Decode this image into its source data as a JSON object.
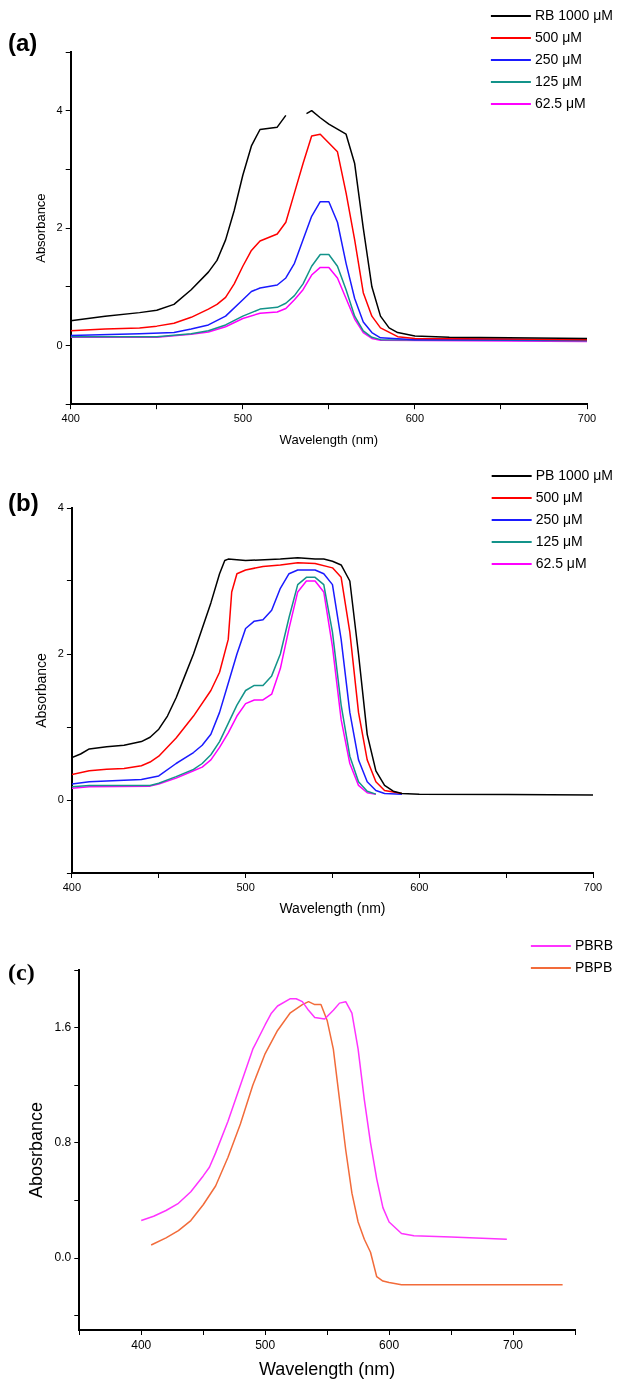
{
  "chart_data": [
    {
      "type": "line",
      "title": "(a)",
      "xlabel": "Wavelength (nm)",
      "ylabel": "Absorbance",
      "xlim": [
        400,
        700
      ],
      "xticks": [
        400,
        {
          "value": 450,
          "label": null
        },
        500,
        {
          "value": 550,
          "label": null
        },
        600,
        {
          "value": 650,
          "label": null
        },
        700
      ],
      "ylim": [
        -1,
        5
      ],
      "yticks": [
        {
          "value": -1,
          "label": null
        },
        0,
        {
          "value": 1,
          "label": null
        },
        2,
        {
          "value": 3,
          "label": null
        },
        4,
        {
          "value": 5,
          "label": null
        }
      ],
      "grid": false,
      "marker": "none",
      "legend": "top right",
      "series": [
        {
          "name": "RB 1000 μM",
          "color": "#000000",
          "x": [
            400,
            420,
            440,
            450,
            460,
            470,
            480,
            485,
            490,
            495,
            500,
            505,
            510,
            520,
            525,
            530,
            537,
            540,
            545,
            550,
            560,
            565,
            570,
            575,
            580,
            585,
            590,
            600,
            620,
            700
          ],
          "values": [
            0.42,
            0.5,
            0.56,
            0.6,
            0.7,
            0.95,
            1.25,
            1.45,
            1.8,
            2.3,
            2.9,
            3.4,
            3.68,
            3.72,
            3.92,
            null,
            3.95,
            4.0,
            3.88,
            3.77,
            3.6,
            3.1,
            2.0,
            1.0,
            0.5,
            0.3,
            0.22,
            0.16,
            0.14,
            0.12
          ]
        },
        {
          "name": "500 μM",
          "color": "#ff0000",
          "x": [
            400,
            420,
            440,
            450,
            460,
            470,
            480,
            485,
            490,
            495,
            500,
            505,
            510,
            520,
            525,
            530,
            535,
            540,
            545,
            550,
            555,
            560,
            565,
            570,
            575,
            580,
            590,
            600,
            700
          ],
          "values": [
            0.25,
            0.28,
            0.3,
            0.33,
            0.38,
            0.48,
            0.62,
            0.7,
            0.82,
            1.05,
            1.35,
            1.62,
            1.78,
            1.9,
            2.1,
            2.6,
            3.1,
            3.57,
            3.6,
            3.45,
            3.3,
            2.6,
            1.8,
            0.9,
            0.5,
            0.3,
            0.15,
            0.12,
            0.1
          ]
        },
        {
          "name": "250 μM",
          "color": "#1a1aff",
          "x": [
            400,
            440,
            460,
            470,
            480,
            490,
            500,
            505,
            510,
            520,
            525,
            530,
            535,
            540,
            545,
            550,
            555,
            560,
            565,
            570,
            575,
            580,
            600,
            700
          ],
          "values": [
            0.17,
            0.2,
            0.22,
            0.28,
            0.35,
            0.5,
            0.78,
            0.92,
            0.98,
            1.03,
            1.15,
            1.4,
            1.8,
            2.2,
            2.45,
            2.45,
            2.1,
            1.4,
            0.8,
            0.4,
            0.22,
            0.13,
            0.1,
            0.1
          ]
        },
        {
          "name": "125 μM",
          "color": "#13938a",
          "x": [
            400,
            450,
            470,
            480,
            490,
            500,
            510,
            520,
            525,
            530,
            535,
            540,
            545,
            550,
            555,
            560,
            565,
            570,
            575,
            580,
            700
          ],
          "values": [
            0.15,
            0.15,
            0.2,
            0.25,
            0.35,
            0.5,
            0.62,
            0.65,
            0.72,
            0.85,
            1.05,
            1.35,
            1.55,
            1.55,
            1.35,
            0.95,
            0.5,
            0.25,
            0.14,
            0.1,
            0.08
          ]
        },
        {
          "name": "62.5 μM",
          "color": "#ff00ff",
          "x": [
            400,
            450,
            470,
            480,
            490,
            500,
            510,
            520,
            525,
            530,
            535,
            540,
            545,
            550,
            555,
            560,
            565,
            570,
            575,
            580,
            700
          ],
          "values": [
            0.14,
            0.14,
            0.19,
            0.23,
            0.32,
            0.46,
            0.55,
            0.57,
            0.63,
            0.78,
            0.95,
            1.2,
            1.33,
            1.33,
            1.15,
            0.8,
            0.45,
            0.22,
            0.12,
            0.09,
            0.07
          ]
        }
      ]
    },
    {
      "type": "line",
      "title": "(b)",
      "xlabel": "Wavelength (nm)",
      "ylabel": "Absorbance",
      "xlim": [
        400,
        700
      ],
      "xticks": [
        400,
        {
          "value": 450,
          "label": null
        },
        500,
        {
          "value": 550,
          "label": null
        },
        600,
        {
          "value": 650,
          "label": null
        },
        700
      ],
      "ylim": [
        -1,
        4
      ],
      "yticks": [
        {
          "value": -1,
          "label": null
        },
        0,
        {
          "value": 1,
          "label": null
        },
        2,
        {
          "value": 3,
          "label": null
        },
        4
      ],
      "grid": false,
      "marker": "none",
      "legend": "top right",
      "series": [
        {
          "name": "PB 1000 μM",
          "color": "#000000",
          "x": [
            400,
            405,
            410,
            420,
            430,
            440,
            445,
            450,
            455,
            460,
            465,
            470,
            475,
            480,
            485,
            488,
            490,
            500,
            520,
            530,
            540,
            545,
            550,
            555,
            560,
            565,
            570,
            575,
            580,
            585,
            590,
            600,
            700
          ],
          "values": [
            0.58,
            0.63,
            0.7,
            0.73,
            0.75,
            0.8,
            0.86,
            0.97,
            1.15,
            1.4,
            1.7,
            2.0,
            2.35,
            2.7,
            3.1,
            3.28,
            3.3,
            3.28,
            3.3,
            3.32,
            3.3,
            3.3,
            3.27,
            3.22,
            3.0,
            2.0,
            0.9,
            0.4,
            0.2,
            0.12,
            0.09,
            0.08,
            0.07
          ]
        },
        {
          "name": "500 μM",
          "color": "#ff0000",
          "x": [
            400,
            410,
            420,
            430,
            440,
            445,
            450,
            460,
            470,
            480,
            485,
            490,
            492,
            495,
            500,
            510,
            520,
            530,
            540,
            550,
            555,
            560,
            565,
            570,
            575,
            580,
            590
          ],
          "values": [
            0.35,
            0.4,
            0.42,
            0.43,
            0.47,
            0.52,
            0.6,
            0.85,
            1.15,
            1.5,
            1.75,
            2.2,
            2.85,
            3.1,
            3.15,
            3.2,
            3.22,
            3.25,
            3.24,
            3.18,
            3.05,
            2.3,
            1.2,
            0.55,
            0.25,
            0.13,
            0.09
          ]
        },
        {
          "name": "250 μM",
          "color": "#1a1aff",
          "x": [
            400,
            410,
            440,
            450,
            460,
            470,
            475,
            480,
            485,
            490,
            495,
            500,
            505,
            510,
            515,
            520,
            525,
            530,
            540,
            545,
            550,
            555,
            560,
            565,
            570,
            575,
            580,
            590
          ],
          "values": [
            0.22,
            0.25,
            0.28,
            0.33,
            0.5,
            0.65,
            0.75,
            0.9,
            1.2,
            1.6,
            2.0,
            2.35,
            2.45,
            2.47,
            2.6,
            2.9,
            3.1,
            3.15,
            3.15,
            3.1,
            2.95,
            2.2,
            1.2,
            0.55,
            0.25,
            0.13,
            0.09,
            0.08
          ]
        },
        {
          "name": "125 μM",
          "color": "#13938a",
          "x": [
            400,
            410,
            445,
            450,
            460,
            470,
            475,
            480,
            485,
            490,
            495,
            500,
            505,
            510,
            515,
            520,
            525,
            530,
            535,
            540,
            545,
            550,
            555,
            560,
            565,
            570,
            575
          ],
          "values": [
            0.18,
            0.2,
            0.2,
            0.23,
            0.32,
            0.42,
            0.5,
            0.62,
            0.8,
            1.05,
            1.3,
            1.5,
            1.57,
            1.57,
            1.7,
            2.0,
            2.5,
            2.95,
            3.05,
            3.05,
            2.95,
            2.3,
            1.3,
            0.6,
            0.25,
            0.12,
            0.08
          ]
        },
        {
          "name": "62.5 μM",
          "color": "#ff00ff",
          "x": [
            400,
            410,
            445,
            450,
            460,
            470,
            475,
            480,
            485,
            490,
            495,
            500,
            505,
            510,
            515,
            520,
            525,
            530,
            535,
            540,
            545,
            550,
            555,
            560,
            565,
            570,
            575
          ],
          "values": [
            0.16,
            0.18,
            0.19,
            0.22,
            0.3,
            0.4,
            0.45,
            0.55,
            0.72,
            0.92,
            1.15,
            1.32,
            1.37,
            1.37,
            1.45,
            1.8,
            2.35,
            2.85,
            3.0,
            3.0,
            2.85,
            2.1,
            1.1,
            0.5,
            0.2,
            0.1,
            0.08
          ]
        }
      ]
    },
    {
      "type": "line",
      "title": "(c)",
      "xlabel": "Wavelength (nm)",
      "ylabel": "Abosrbance",
      "xlim": [
        350,
        750
      ],
      "xticks": [
        {
          "value": 350,
          "label": null
        },
        400,
        {
          "value": 450,
          "label": null
        },
        500,
        {
          "value": 550,
          "label": null
        },
        600,
        {
          "value": 650,
          "label": null
        },
        700,
        {
          "value": 750,
          "label": null
        }
      ],
      "ylim": [
        -0.5,
        2.0
      ],
      "yticks": [
        {
          "value": -0.4,
          "label": null
        },
        {
          "value": 0,
          "label": "0.0"
        },
        {
          "value": 0.4,
          "label": null
        },
        0.8,
        {
          "value": 1.2,
          "label": null
        },
        1.6,
        {
          "value": 2.0,
          "label": null
        }
      ],
      "grid": false,
      "marker": "none",
      "legend": "top right",
      "series": [
        {
          "name": "PBRB",
          "color": "#ff33ff",
          "x": [
            400,
            410,
            420,
            430,
            440,
            450,
            455,
            460,
            470,
            480,
            490,
            500,
            505,
            510,
            520,
            525,
            530,
            535,
            540,
            548,
            555,
            560,
            565,
            570,
            575,
            580,
            585,
            590,
            595,
            600,
            610,
            620,
            650,
            695
          ],
          "values": [
            0.26,
            0.29,
            0.33,
            0.38,
            0.46,
            0.57,
            0.63,
            0.73,
            0.95,
            1.2,
            1.45,
            1.62,
            1.7,
            1.75,
            1.8,
            1.8,
            1.78,
            1.72,
            1.67,
            1.66,
            1.72,
            1.77,
            1.78,
            1.7,
            1.45,
            1.1,
            0.8,
            0.55,
            0.35,
            0.25,
            0.17,
            0.155,
            0.145,
            0.13
          ]
        },
        {
          "name": "PBPB",
          "color": "#f26b3a",
          "x": [
            408,
            420,
            430,
            440,
            450,
            460,
            470,
            480,
            490,
            500,
            510,
            520,
            530,
            535,
            540,
            545,
            550,
            555,
            560,
            565,
            570,
            575,
            580,
            585,
            590,
            595,
            600,
            610,
            740
          ],
          "values": [
            0.09,
            0.14,
            0.19,
            0.26,
            0.37,
            0.5,
            0.7,
            0.93,
            1.2,
            1.42,
            1.58,
            1.7,
            1.76,
            1.78,
            1.76,
            1.76,
            1.65,
            1.45,
            1.1,
            0.75,
            0.45,
            0.25,
            0.13,
            0.04,
            -0.13,
            -0.16,
            -0.17,
            -0.185,
            -0.185
          ]
        }
      ]
    }
  ]
}
